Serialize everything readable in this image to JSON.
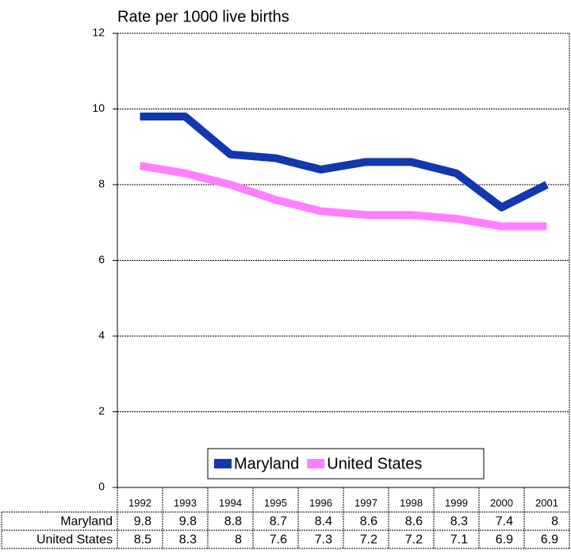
{
  "chart_data": {
    "type": "line",
    "title": "Rate per 1000 live births",
    "categories": [
      "1992",
      "1993",
      "1994",
      "1995",
      "1996",
      "1997",
      "1998",
      "1999",
      "2000",
      "2001"
    ],
    "series": [
      {
        "name": "Maryland",
        "color": "#1238b0",
        "values": [
          9.8,
          9.8,
          8.8,
          8.7,
          8.4,
          8.6,
          8.6,
          8.3,
          7.4,
          8
        ]
      },
      {
        "name": "United States",
        "color": "#ff80ff",
        "values": [
          8.5,
          8.3,
          8,
          7.6,
          7.3,
          7.2,
          7.2,
          7.1,
          6.9,
          6.9
        ]
      }
    ],
    "ylim": [
      0,
      12
    ],
    "yticks": [
      0,
      2,
      4,
      6,
      8,
      10,
      12
    ],
    "grid": true,
    "legend": "bottom",
    "data_table": true
  }
}
